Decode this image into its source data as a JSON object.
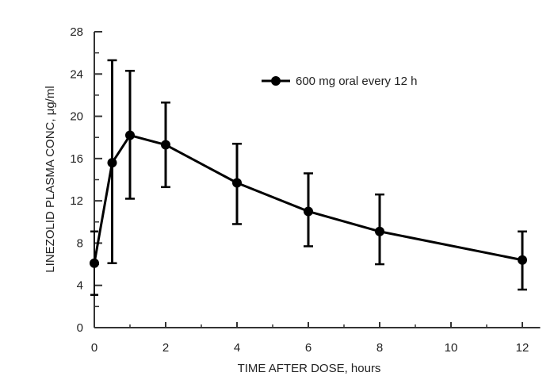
{
  "chart_data": {
    "type": "line",
    "title": "",
    "xlabel": "TIME AFTER DOSE, hours",
    "ylabel": "LINEZOLID PLASMA CONC, μg/ml",
    "xlim": [
      0,
      12.5
    ],
    "ylim": [
      0,
      28
    ],
    "x_ticks": [
      0,
      2,
      4,
      6,
      8,
      10,
      12
    ],
    "x_tick_labels": [
      "0",
      "2",
      "4",
      "6",
      "8",
      "10",
      "12"
    ],
    "x_minor_ticks": [
      1,
      3,
      5,
      7,
      9,
      11
    ],
    "y_ticks": [
      0,
      4,
      8,
      12,
      16,
      20,
      24,
      28
    ],
    "y_tick_labels": [
      "0",
      "4",
      "8",
      "12",
      "16",
      "20",
      "24",
      "28"
    ],
    "y_minor_ticks": [
      2,
      6,
      10,
      14,
      18,
      22,
      26
    ],
    "grid": false,
    "legend_position": "top-right",
    "series": [
      {
        "name": "600 mg oral every 12 h",
        "color": "#000000",
        "marker": "filled-circle",
        "x": [
          0,
          0.5,
          1,
          2,
          4,
          6,
          8,
          12
        ],
        "y": [
          6.1,
          15.6,
          18.2,
          17.3,
          13.7,
          11.0,
          9.1,
          6.4
        ],
        "error_upper": [
          9.1,
          25.3,
          24.3,
          21.3,
          17.4,
          14.6,
          12.6,
          9.1
        ],
        "error_lower": [
          3.1,
          6.1,
          12.2,
          13.3,
          9.8,
          7.7,
          6.0,
          3.6
        ]
      }
    ]
  }
}
